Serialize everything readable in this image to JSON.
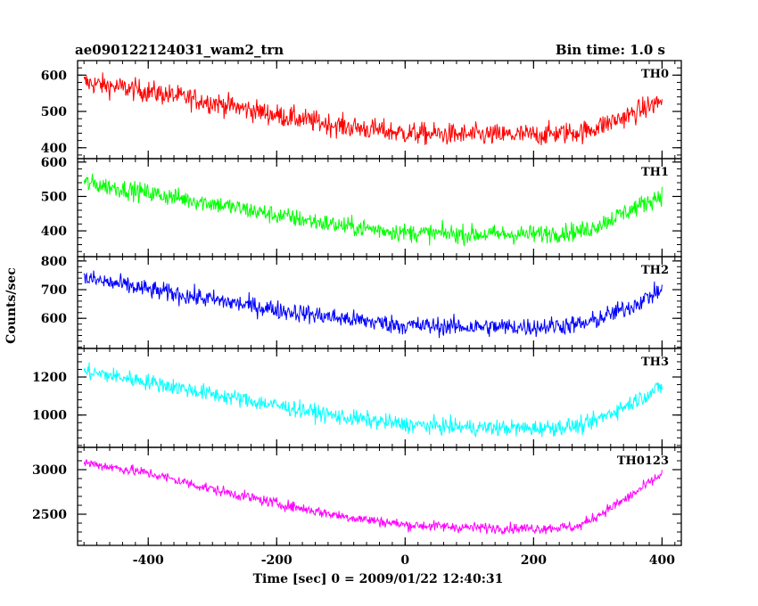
{
  "header": {
    "title": "ae090122124031_wam2_trn",
    "bin_time": "Bin time: 1.0 s"
  },
  "chart_data": {
    "type": "line",
    "xlabel": "Time [sec] 0 = 2009/01/22 12:40:31",
    "ylabel": "Counts/sec",
    "xlim": [
      -510,
      430
    ],
    "x_ticks": [
      "-400",
      "-200",
      "0",
      "200",
      "400"
    ],
    "x_tick_values": [
      -400,
      -200,
      0,
      200,
      400
    ],
    "x_range": [
      -500,
      400
    ],
    "bin_time_s": 1.0,
    "grid": false,
    "panels": [
      {
        "name": "TH0",
        "color": "#ff0000",
        "ylim": [
          370,
          640
        ],
        "y_ticks": [
          "400",
          "500",
          "600"
        ],
        "y_tick_values": [
          400,
          500,
          600
        ],
        "trend_x": [
          -500,
          -400,
          -300,
          -200,
          -100,
          0,
          100,
          200,
          280,
          350,
          400
        ],
        "trend_y": [
          580,
          555,
          525,
          490,
          460,
          440,
          435,
          435,
          445,
          490,
          530
        ],
        "noise_amplitude": 28
      },
      {
        "name": "TH1",
        "color": "#00ff00",
        "ylim": [
          325,
          610
        ],
        "y_ticks": [
          "400",
          "500",
          "600"
        ],
        "y_tick_values": [
          400,
          500,
          600
        ],
        "trend_x": [
          -500,
          -400,
          -300,
          -200,
          -100,
          0,
          100,
          200,
          280,
          350,
          400
        ],
        "trend_y": [
          540,
          510,
          480,
          445,
          415,
          395,
          390,
          390,
          400,
          460,
          505
        ],
        "noise_amplitude": 25
      },
      {
        "name": "TH2",
        "color": "#0000ff",
        "ylim": [
          495,
          815
        ],
        "y_ticks": [
          "600",
          "700",
          "800"
        ],
        "y_tick_values": [
          600,
          700,
          800
        ],
        "trend_x": [
          -500,
          -400,
          -300,
          -200,
          -100,
          0,
          100,
          200,
          280,
          350,
          400
        ],
        "trend_y": [
          740,
          700,
          665,
          630,
          600,
          575,
          570,
          570,
          580,
          640,
          700
        ],
        "noise_amplitude": 30
      },
      {
        "name": "TH3",
        "color": "#00ffff",
        "ylim": [
          830,
          1350
        ],
        "y_ticks": [
          "1000",
          "1200"
        ],
        "y_tick_values": [
          1000,
          1200
        ],
        "trend_x": [
          -500,
          -400,
          -300,
          -200,
          -100,
          0,
          100,
          200,
          280,
          350,
          400
        ],
        "trend_y": [
          1230,
          1175,
          1110,
          1050,
          990,
          950,
          935,
          930,
          945,
          1060,
          1150
        ],
        "noise_amplitude": 40
      },
      {
        "name": "TH0123",
        "color": "#ff00ff",
        "ylim": [
          2150,
          3250
        ],
        "y_ticks": [
          "2500",
          "3000"
        ],
        "y_tick_values": [
          2500,
          3000
        ],
        "trend_x": [
          -500,
          -400,
          -300,
          -200,
          -100,
          0,
          100,
          200,
          270,
          350,
          400
        ],
        "trend_y": [
          3080,
          2960,
          2780,
          2620,
          2480,
          2380,
          2350,
          2340,
          2360,
          2700,
          2950
        ],
        "noise_amplitude": 55
      }
    ]
  }
}
